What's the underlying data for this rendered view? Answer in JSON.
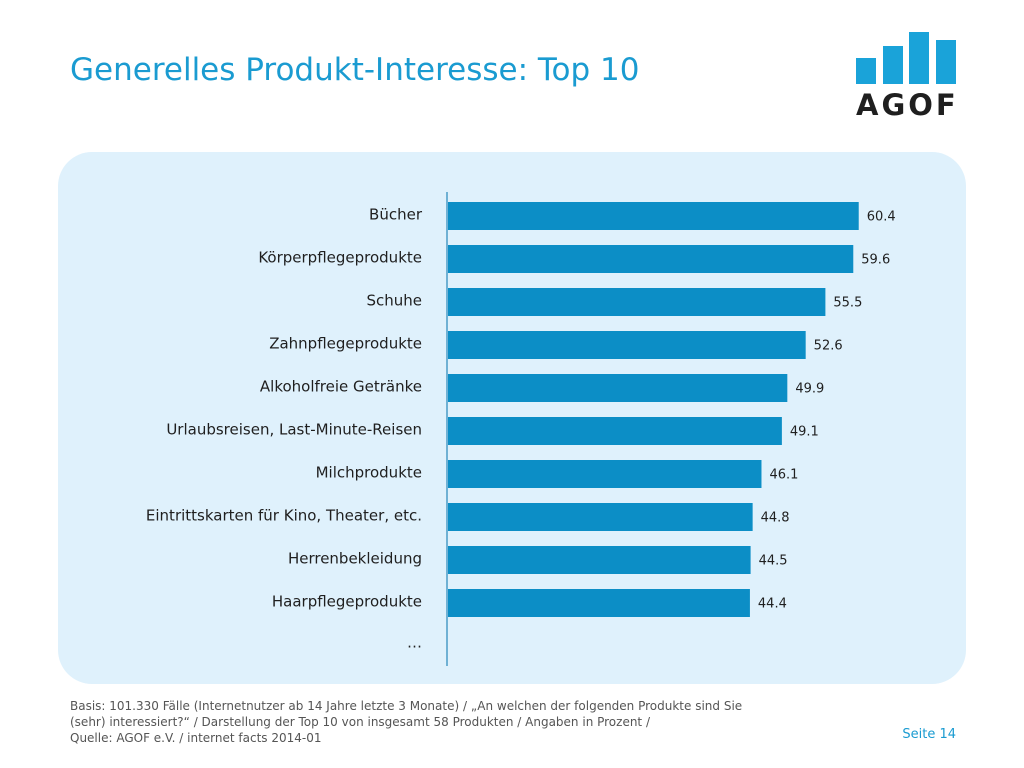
{
  "title": "Generelles Produkt-Interesse: Top 10",
  "logo": {
    "text": "AGOF",
    "color": "#1aa3d9"
  },
  "chart_data": {
    "type": "bar",
    "orientation": "horizontal",
    "categories": [
      "Bücher",
      "Körperpflegeprodukte",
      "Schuhe",
      "Zahnpflegeprodukte",
      "Alkoholfreie Getränke",
      "Urlaubsreisen, Last-Minute-Reisen",
      "Milchprodukte",
      "Eintrittskarten für Kino, Theater, etc.",
      "Herrenbekleidung",
      "Haarpflegeprodukte"
    ],
    "values": [
      60.4,
      59.6,
      55.5,
      52.6,
      49.9,
      49.1,
      46.1,
      44.8,
      44.5,
      44.4
    ],
    "trailing_label": "…",
    "bar_color": "#0c8ec6",
    "grid": false
  },
  "footer": {
    "line1": "Basis: 101.330 Fälle (Internetnutzer ab 14 Jahre letzte 3 Monate) / „An welchen der folgenden Produkte sind Sie",
    "line2": "(sehr) interessiert?“ / Darstellung der Top 10 von insgesamt 58 Produkten / Angaben in Prozent /",
    "line3": "Quelle: AGOF e.V. / internet facts 2014-01"
  },
  "page_label": "Seite 14"
}
